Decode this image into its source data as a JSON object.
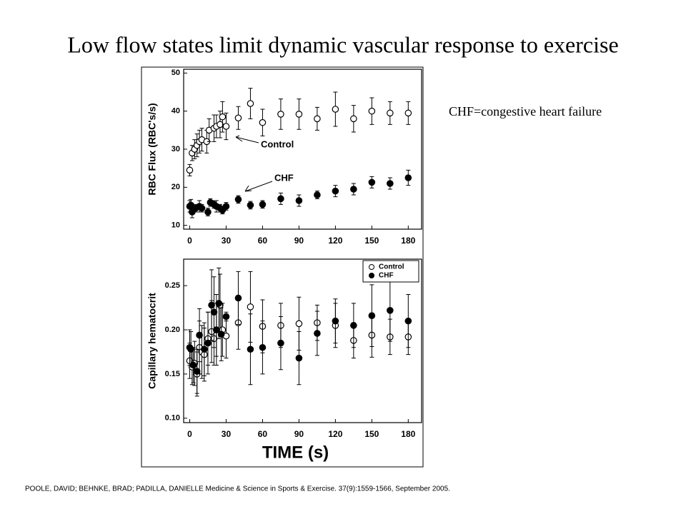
{
  "title": "Low flow states limit dynamic  vascular response to exercise",
  "note": "CHF=congestive heart failure",
  "citation": "POOLE, DAVID; BEHNKE, BRAD; PADILLA, DANIELLE Medicine & Science in Sports & Exercise. 37(9):1559-1566, September 2005.",
  "chart_data": [
    {
      "type": "scatter",
      "ylabel": "RBC Flux (RBC's/s)",
      "xlim": [
        -5,
        191
      ],
      "xticks": [
        0,
        30,
        60,
        90,
        120,
        150,
        180
      ],
      "ylim": [
        9,
        51
      ],
      "yticks": [
        10,
        20,
        30,
        40,
        50
      ],
      "legend": false,
      "grid": false,
      "series": [
        {
          "name": "Control",
          "color": "#000000",
          "fill": "#ffffff",
          "x": [
            0,
            2,
            4,
            6,
            8,
            10,
            14,
            16,
            20,
            22,
            25,
            27,
            30,
            40,
            50,
            60,
            75,
            90,
            105,
            120,
            135,
            150,
            165,
            180
          ],
          "values": [
            24.5,
            29,
            30,
            31,
            32,
            32.5,
            32,
            35,
            35.5,
            36,
            36.5,
            38.5,
            36,
            38.2,
            42,
            37,
            39.2,
            39.2,
            38,
            40.5,
            38,
            40,
            39.5,
            39.5
          ],
          "errors": [
            1.5,
            2,
            2.5,
            3,
            3,
            3,
            3,
            3,
            3.5,
            3,
            3.5,
            4,
            3.5,
            3,
            4,
            3.5,
            4,
            4,
            3,
            4.5,
            3.5,
            3.5,
            3,
            3
          ]
        },
        {
          "name": "CHF",
          "color": "#000000",
          "fill": "#000000",
          "x": [
            0,
            1,
            2,
            5,
            8,
            10,
            15,
            17,
            20,
            22,
            25,
            27,
            30,
            40,
            50,
            60,
            75,
            90,
            105,
            120,
            135,
            150,
            165,
            180
          ],
          "values": [
            15,
            15.3,
            13.5,
            14.5,
            15,
            14.5,
            13.5,
            16,
            15.5,
            15,
            14.5,
            14,
            15,
            16.8,
            15.3,
            15.5,
            17,
            16.5,
            18,
            19,
            19.5,
            21.3,
            21,
            22.5
          ],
          "errors": [
            1.5,
            1.5,
            1.5,
            1,
            1.5,
            1,
            1,
            1,
            1,
            1.5,
            1,
            1,
            1,
            1,
            1,
            1,
            1.5,
            1.5,
            1,
            1.5,
            1.5,
            1.5,
            1.5,
            2
          ]
        }
      ]
    },
    {
      "type": "scatter",
      "ylabel": "Capillary hematocrit",
      "xlabel": "TIME (s)",
      "xlim": [
        -5,
        191
      ],
      "xticks": [
        0,
        30,
        60,
        90,
        120,
        150,
        180
      ],
      "ylim": [
        0.095,
        0.28
      ],
      "yticks": [
        {
          "value": 0.1,
          "label": "0.10"
        },
        0.15,
        {
          "value": 0.2,
          "label": "0.20"
        },
        0.25
      ],
      "legend": "upper right",
      "grid": false,
      "series": [
        {
          "name": "Control",
          "color": "#000000",
          "fill": "#ffffff",
          "x": [
            0,
            2,
            4,
            6,
            8,
            10,
            12,
            15,
            18,
            20,
            22,
            25,
            27,
            30,
            40,
            50,
            60,
            75,
            90,
            105,
            120,
            135,
            150,
            165,
            180
          ],
          "values": [
            0.165,
            0.158,
            0.162,
            0.15,
            0.18,
            0.175,
            0.172,
            0.19,
            0.198,
            0.19,
            0.2,
            0.228,
            0.2,
            0.193,
            0.208,
            0.226,
            0.204,
            0.205,
            0.207,
            0.208,
            0.205,
            0.188,
            0.194,
            0.192,
            0.192
          ],
          "errors": [
            0.02,
            0.02,
            0.025,
            0.025,
            0.03,
            0.03,
            0.03,
            0.03,
            0.035,
            0.03,
            0.03,
            0.035,
            0.03,
            0.025,
            0.03,
            0.04,
            0.03,
            0.025,
            0.03,
            0.02,
            0.025,
            0.02,
            0.025,
            0.02,
            0.02
          ]
        },
        {
          "name": "CHF",
          "color": "#000000",
          "fill": "#000000",
          "x": [
            0,
            1,
            3,
            6,
            8,
            12,
            15,
            18,
            20,
            22,
            24,
            26,
            30,
            40,
            50,
            60,
            75,
            90,
            105,
            120,
            135,
            150,
            165,
            180
          ],
          "values": [
            0.18,
            0.178,
            0.16,
            0.153,
            0.194,
            0.178,
            0.185,
            0.228,
            0.22,
            0.2,
            0.23,
            0.195,
            0.215,
            0.236,
            0.178,
            0.18,
            0.185,
            0.168,
            0.196,
            0.21,
            0.205,
            0.216,
            0.222,
            0.21
          ],
          "errors": [
            0.02,
            0.02,
            0.02,
            0.025,
            0.03,
            0.03,
            0.035,
            0.04,
            0.04,
            0.04,
            0.04,
            0.03,
            0.005,
            0.03,
            0.04,
            0.03,
            0.03,
            0.03,
            0.025,
            0.025,
            0.025,
            0.035,
            0.035,
            0.03
          ]
        }
      ]
    }
  ]
}
